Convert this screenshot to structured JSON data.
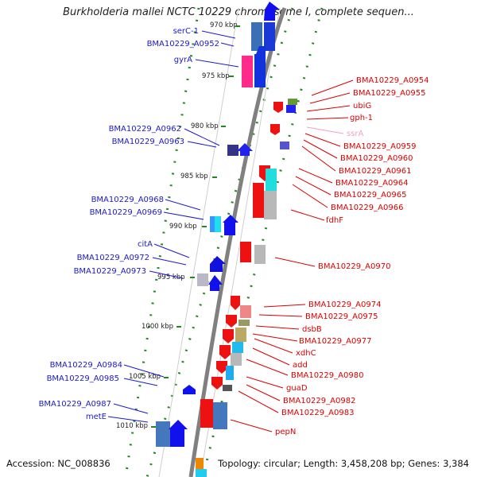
{
  "title": "Burkholderia mallei NCTC 10229 chromosome I, complete sequen...",
  "footer": {
    "accession": "Accession: NC_008836",
    "summary": "Topology: circular; Length: 3,458,208 bp; Genes: 3,384"
  },
  "colors": {
    "left_label": "#1a1acc",
    "right_label": "#dd0000",
    "rna_label": "#f4a0c8",
    "forward_gene": "#0000ee",
    "reverse_gene": "#ee0000",
    "backbone": "#808080",
    "tick_dots": "#1f8a1f"
  },
  "kbp_ticks": [
    "970 kbp",
    "975 kbp",
    "980 kbp",
    "985 kbp",
    "990 kbp",
    "995 kbp",
    "1000 kbp",
    "1005 kbp",
    "1010 kbp"
  ],
  "left_labels": [
    "serC-1",
    "BMA10229_A0952",
    "gyrA",
    "BMA10229_A0962",
    "BMA10229_A0963",
    "BMA10229_A0968",
    "BMA10229_A0969",
    "citA",
    "BMA10229_A0972",
    "BMA10229_A0973",
    "BMA10229_A0984",
    "BMA10229_A0985",
    "BMA10229_A0987",
    "metE"
  ],
  "right_labels": [
    "BMA10229_A0954",
    "BMA10229_A0955",
    "ubiG",
    "gph-1",
    "ssrA",
    "BMA10229_A0959",
    "BMA10229_A0960",
    "BMA10229_A0961",
    "BMA10229_A0964",
    "BMA10229_A0965",
    "BMA10229_A0966",
    "fdhF",
    "BMA10229_A0970",
    "BMA10229_A0974",
    "BMA10229_A0975",
    "dsbB",
    "BMA10229_A0977",
    "xdhC",
    "add",
    "BMA10229_A0980",
    "guaD",
    "BMA10229_A0982",
    "BMA10229_A0983",
    "pepN"
  ]
}
